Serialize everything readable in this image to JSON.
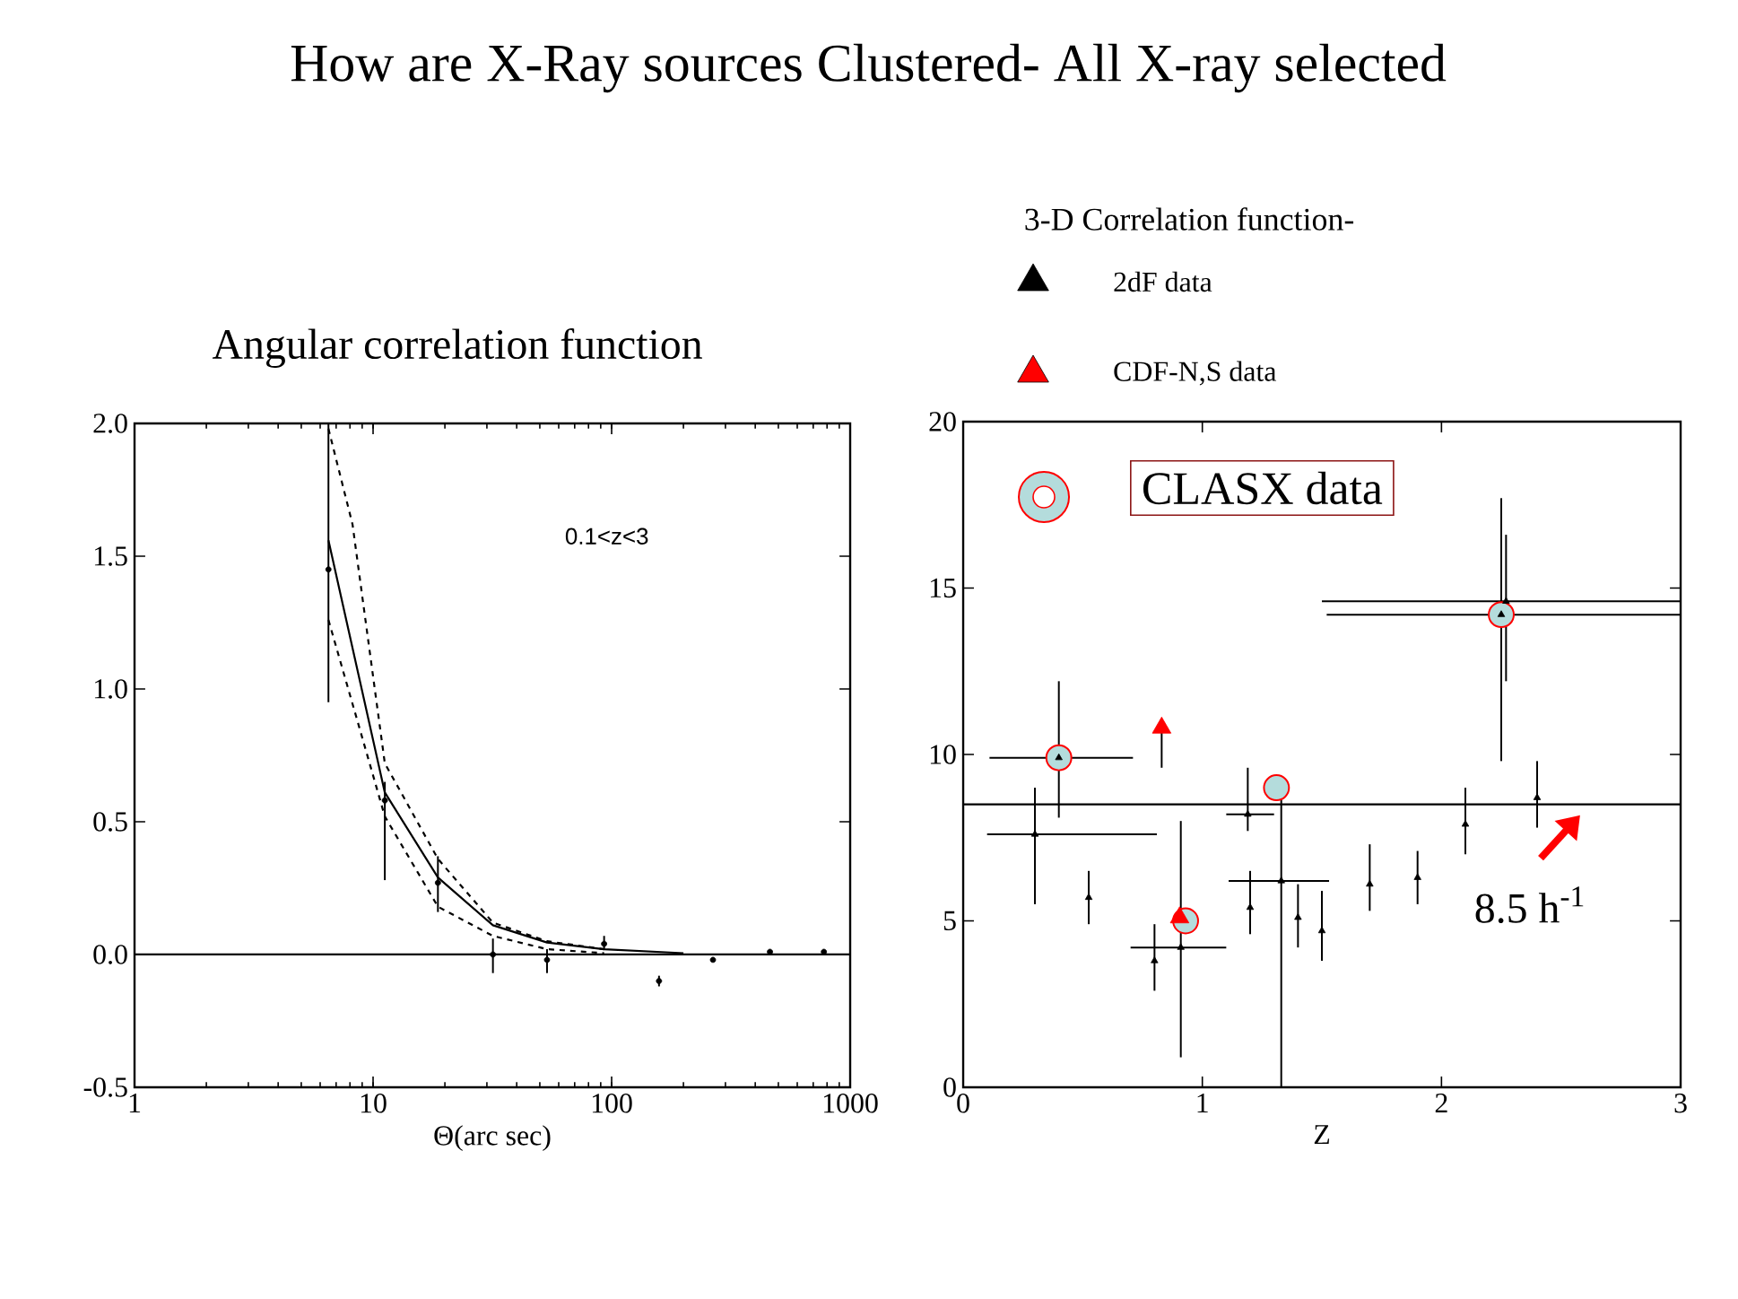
{
  "chart_data": [
    {
      "type": "line",
      "title": "How are X-Ray sources Clustered- All X-ray selected",
      "subtitle": "Angular correlation function",
      "xlabel": "Θ(arc sec)",
      "log": "x",
      "xlim": [
        1,
        1000
      ],
      "ylim": [
        -0.5,
        2.0
      ],
      "xticks": [
        1,
        10,
        100,
        1000
      ],
      "yticks": [
        {
          "value": -0.5,
          "label": "-0.5"
        },
        {
          "value": 0,
          "label": "0.0"
        },
        {
          "value": 0.5,
          "label": "0.5"
        },
        {
          "value": 1.0,
          "label": "1.0"
        },
        {
          "value": 1.5,
          "label": "1.5"
        },
        {
          "value": 2.0,
          "label": "2.0"
        }
      ],
      "ref_lines": [
        {
          "axis": "y",
          "value": 0
        }
      ],
      "annotations": [
        "0.1<z<3"
      ],
      "series": [
        {
          "type": "scatter",
          "color": "#000000",
          "marker": "circle",
          "x": [
            6.5,
            11.2,
            18.7,
            31.8,
            53.6,
            93,
            158,
            266,
            461,
            776
          ],
          "values": [
            1.45,
            0.58,
            0.27,
            0.0,
            -0.02,
            0.04,
            -0.1,
            -0.02,
            0.01,
            0.01
          ],
          "errors": [
            [
              0.95,
              2.0
            ],
            [
              0.28,
              0.65
            ],
            [
              0.16,
              0.37
            ],
            [
              -0.07,
              0.06
            ],
            [
              -0.07,
              0.02
            ],
            [
              0.02,
              0.07
            ],
            [
              -0.12,
              -0.08
            ],
            null,
            null,
            null
          ]
        },
        {
          "color": "#000000",
          "line_style": "solid",
          "x": [
            6.5,
            11.2,
            18.7,
            31.8,
            53.6,
            93,
            200
          ],
          "values": [
            1.56,
            0.61,
            0.29,
            0.11,
            0.045,
            0.02,
            0.005
          ]
        },
        {
          "color": "#000000",
          "line_style": "dashed",
          "x": [
            6.5,
            8.2,
            11.2,
            18.7,
            31.8,
            53.6,
            93
          ],
          "values": [
            1.98,
            1.62,
            0.72,
            0.36,
            0.12,
            0.05,
            0.02
          ]
        },
        {
          "color": "#000000",
          "line_style": "dashed",
          "x": [
            6.5,
            11.2,
            18.7,
            31.8,
            53.6,
            93
          ],
          "values": [
            1.26,
            0.52,
            0.18,
            0.07,
            0.02,
            0.005
          ]
        }
      ]
    },
    {
      "type": "scatter",
      "legend_title": "3-D Correlation function-",
      "xlabel": "Z",
      "xlim": [
        0,
        3
      ],
      "ylim": [
        0,
        20
      ],
      "xticks": [
        0,
        1,
        2,
        3
      ],
      "yticks": [
        0,
        5,
        10,
        15,
        20
      ],
      "legend": "top",
      "ref_lines": [
        {
          "axis": "y",
          "value": 8.5,
          "label": "8.5 h$^{-1}$"
        }
      ],
      "series": [
        {
          "name": "2dF data",
          "color": "#000000",
          "marker": "triangle",
          "x": [
            0.4,
            0.3,
            0.525,
            0.8,
            0.91,
            1.19,
            1.33,
            1.2,
            1.4,
            1.5,
            1.7,
            1.9,
            2.1,
            2.4,
            2.25,
            2.27
          ],
          "values": [
            9.9,
            7.6,
            5.7,
            3.8,
            4.2,
            8.2,
            6.2,
            5.4,
            5.1,
            4.7,
            6.1,
            6.3,
            7.9,
            8.7,
            14.2,
            14.6
          ],
          "errors": [
            [
              8.1,
              12.2
            ],
            [
              5.5,
              9.0
            ],
            [
              4.9,
              6.5
            ],
            [
              2.9,
              4.9
            ],
            [
              0.9,
              8.0
            ],
            [
              7.7,
              9.6
            ],
            [
              0,
              8.7
            ],
            [
              4.6,
              6.5
            ],
            [
              4.2,
              6.1
            ],
            [
              3.8,
              5.9
            ],
            [
              5.3,
              7.3
            ],
            [
              5.5,
              7.1
            ],
            [
              7.0,
              9.0
            ],
            [
              7.8,
              9.8
            ],
            [
              9.8,
              17.7
            ],
            [
              12.2,
              16.6
            ]
          ],
          "xerrors": [
            [
              0.11,
              0.71
            ],
            [
              0.1,
              0.81
            ],
            null,
            null,
            [
              0.7,
              1.1
            ],
            [
              1.1,
              1.3
            ],
            [
              1.11,
              1.53
            ],
            null,
            null,
            null,
            null,
            null,
            null,
            null,
            [
              1.52,
              3.0
            ],
            [
              1.5,
              3.0
            ]
          ]
        },
        {
          "name": "CDF-N,S data",
          "color": "#ff0000",
          "marker": "triangle",
          "x": [
            0.83,
            0.905
          ],
          "values": [
            10.8,
            5.1
          ],
          "errors": [
            [
              9.6,
              10.8
            ],
            null
          ]
        },
        {
          "name": "CLASX data",
          "color": "#b4dcdc",
          "marker": "circle",
          "x": [
            0.4,
            0.93,
            1.31,
            2.25
          ],
          "values": [
            9.9,
            5.0,
            9.0,
            14.2
          ]
        }
      ]
    }
  ]
}
